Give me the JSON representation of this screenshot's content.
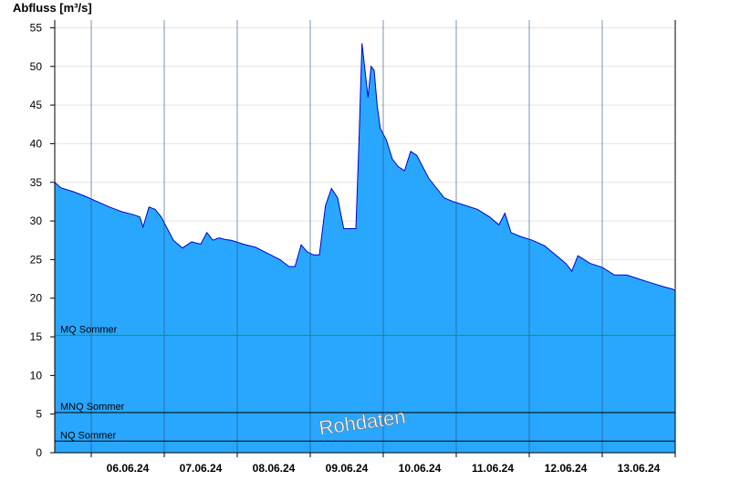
{
  "chart_data": {
    "type": "area",
    "ylabel": "Abfluss [m³/s]",
    "ylim": [
      0,
      56
    ],
    "yticks": [
      0,
      5,
      10,
      15,
      20,
      25,
      30,
      35,
      40,
      45,
      50,
      55
    ],
    "xlim_days": [
      "05.06.24 12:00",
      "14.06.24 00:00"
    ],
    "xtick_labels": [
      "06.06.24",
      "07.06.24",
      "08.06.24",
      "09.06.24",
      "10.06.24",
      "11.06.24",
      "12.06.24",
      "13.06.24"
    ],
    "grid": "horizontal lines at y ticks, vertical lines at midnight",
    "fill_color": "#29a7ff",
    "line_color": "#0000cc",
    "series": [
      {
        "x": [
          "05.06.24 12:00",
          "05.06.24 14:00",
          "05.06.24 18:00",
          "05.06.24 22:00",
          "06.06.24 02:00",
          "06.06.24 06:00",
          "06.06.24 10:00",
          "06.06.24 14:00",
          "06.06.24 16:00",
          "06.06.24 17:00",
          "06.06.24 19:00",
          "06.06.24 21:00",
          "06.06.24 23:00",
          "07.06.24 03:00",
          "07.06.24 06:00",
          "07.06.24 09:00",
          "07.06.24 12:00",
          "07.06.24 14:00",
          "07.06.24 16:00",
          "07.06.24 18:00",
          "07.06.24 20:00",
          "07.06.24 22:00",
          "08.06.24 02:00",
          "08.06.24 06:00",
          "08.06.24 10:00",
          "08.06.24 14:00",
          "08.06.24 17:00",
          "08.06.24 19:00",
          "08.06.24 21:00",
          "08.06.24 23:00",
          "09.06.24 01:00",
          "09.06.24 03:00",
          "09.06.24 05:00",
          "09.06.24 07:00",
          "09.06.24 09:00",
          "09.06.24 11:00",
          "09.06.24 13:00",
          "09.06.24 15:00",
          "09.06.24 16:00",
          "09.06.24 17:00",
          "09.06.24 19:00",
          "09.06.24 20:00",
          "09.06.24 21:00",
          "09.06.24 22:00",
          "09.06.24 23:00",
          "10.06.24 01:00",
          "10.06.24 03:00",
          "10.06.24 05:00",
          "10.06.24 07:00",
          "10.06.24 09:00",
          "10.06.24 11:00",
          "10.06.24 13:00",
          "10.06.24 15:00",
          "10.06.24 17:00",
          "10.06.24 20:00",
          "10.06.24 23:00",
          "11.06.24 03:00",
          "11.06.24 07:00",
          "11.06.24 11:00",
          "11.06.24 14:00",
          "11.06.24 16:00",
          "11.06.24 18:00",
          "11.06.24 21:00",
          "12.06.24 01:00",
          "12.06.24 05:00",
          "12.06.24 09:00",
          "12.06.24 12:00",
          "12.06.24 14:00",
          "12.06.24 16:00",
          "12.06.24 20:00",
          "13.06.24 00:00",
          "13.06.24 04:00",
          "13.06.24 08:00",
          "13.06.24 12:00",
          "13.06.24 16:00",
          "13.06.24 20:00",
          "13.06.24 23:00",
          "14.06.24 00:00"
        ],
        "y": [
          35.0,
          34.3,
          33.8,
          33.2,
          32.5,
          31.8,
          31.2,
          30.8,
          30.5,
          29.2,
          31.8,
          31.5,
          30.5,
          27.5,
          26.5,
          27.3,
          27.0,
          28.5,
          27.5,
          27.8,
          27.6,
          27.5,
          27.0,
          26.6,
          25.8,
          25.0,
          24.1,
          24.1,
          26.9,
          26.0,
          25.6,
          25.6,
          32.0,
          34.2,
          33.0,
          29.0,
          29.0,
          29.0,
          40.0,
          53.0,
          46.0,
          50.0,
          49.5,
          45.0,
          42.0,
          40.5,
          38.0,
          37.0,
          36.5,
          39.0,
          38.5,
          37.0,
          35.5,
          34.5,
          33.0,
          32.5,
          32.0,
          31.5,
          30.5,
          29.5,
          31.0,
          28.5,
          28.0,
          27.5,
          26.8,
          25.5,
          24.5,
          23.5,
          25.5,
          24.5,
          24.0,
          23.0,
          23.0,
          22.5,
          22.0,
          21.5,
          21.2,
          21.0
        ]
      }
    ],
    "reference_lines": [
      {
        "label": "MQ Sommer",
        "value": 15.2,
        "color": "#1aa01a"
      },
      {
        "label": "MNQ Sommer",
        "value": 5.2,
        "color": "#000000"
      },
      {
        "label": "NQ Sommer",
        "value": 1.5,
        "color": "#000000"
      }
    ],
    "watermark": "Rohdaten"
  }
}
